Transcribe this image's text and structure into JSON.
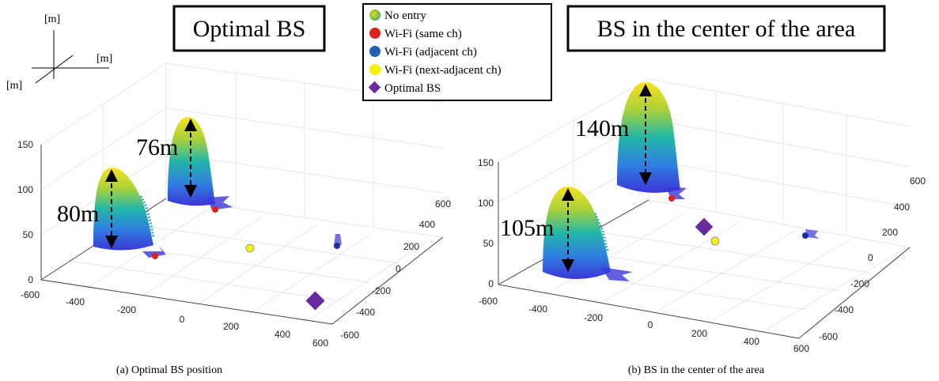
{
  "axis_indicator": {
    "z_unit": "[m]",
    "x_unit": "[m]",
    "y_unit": "[m]"
  },
  "legend": {
    "items": [
      {
        "label": "No entry",
        "marker": "gradient-circle",
        "color": "#7cc63d"
      },
      {
        "label": "Wi-Fi (same ch)",
        "marker": "circle",
        "color": "#e0201b"
      },
      {
        "label": "Wi-Fi (adjacent ch)",
        "marker": "circle",
        "color": "#1f5fb4"
      },
      {
        "label": "Wi-Fi (next-adjacent ch)",
        "marker": "circle",
        "color": "#f5f500"
      },
      {
        "label": "Optimal BS",
        "marker": "diamond",
        "color": "#6a2a9b"
      }
    ]
  },
  "colors": {
    "surface_top": "#f9e11e",
    "surface_mid": "#22b7a8",
    "surface_bottom": "#3b36d8",
    "bs": "#6a2a9b"
  },
  "panels": [
    {
      "title": "Optimal BS",
      "caption": "(a) Optimal BS position",
      "z_ticks": [
        "150",
        "100",
        "50",
        "0"
      ],
      "x_ticks": [
        "-600",
        "-400",
        "-200",
        "0",
        "200",
        "400",
        "600"
      ],
      "y_ticks": [
        "600",
        "400",
        "200",
        "0",
        "-200",
        "-400",
        "-600"
      ],
      "heights": [
        "80m",
        "76m"
      ]
    },
    {
      "title": "BS in the center of the area",
      "caption": "(b) BS in the center of the area",
      "z_ticks": [
        "150",
        "100",
        "50",
        "0"
      ],
      "x_ticks": [
        "-600",
        "-400",
        "-200",
        "0",
        "200",
        "400",
        "600"
      ],
      "y_ticks": [
        "600",
        "400",
        "200",
        "0",
        "-200",
        "-400",
        "-600"
      ],
      "heights": [
        "105m",
        "140m"
      ]
    }
  ]
}
